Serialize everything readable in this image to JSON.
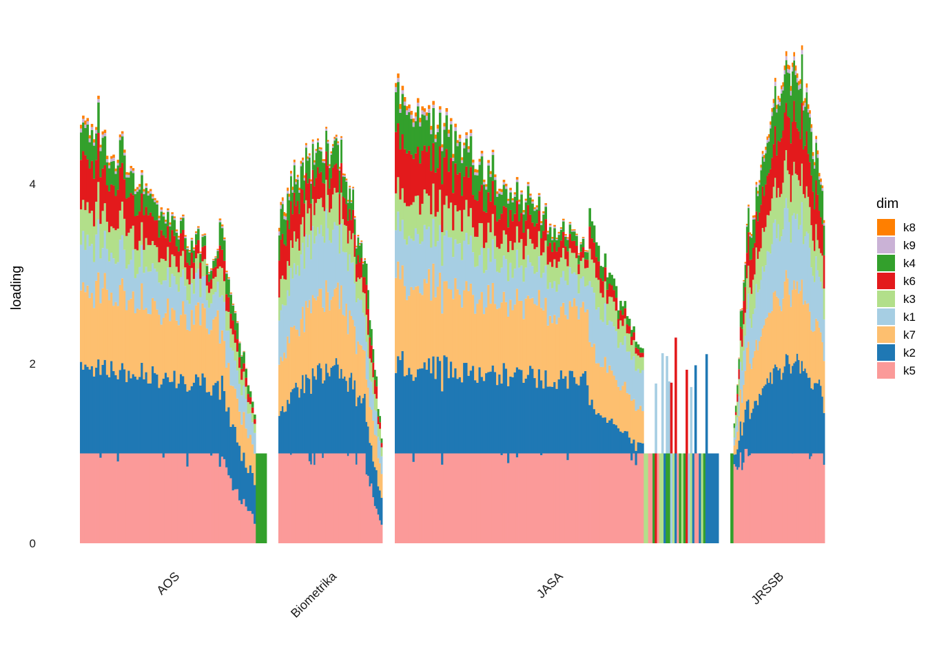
{
  "chart_data": {
    "type": "bar",
    "subtype": "stacked bar, one bar per document, faceted by journal",
    "ylabel": "loading",
    "xlabel": "",
    "ylim": [
      0,
      5.6
    ],
    "y_ticks": [
      "0",
      "2",
      "4"
    ],
    "legend": {
      "title": "dim",
      "placement": "right",
      "entries": [
        {
          "name": "k8",
          "color": "#FF7F00"
        },
        {
          "name": "k9",
          "color": "#CAB2D6"
        },
        {
          "name": "k4",
          "color": "#33A02C"
        },
        {
          "name": "k6",
          "color": "#E31A1C"
        },
        {
          "name": "k3",
          "color": "#B2DF8A"
        },
        {
          "name": "k1",
          "color": "#A6CEE3"
        },
        {
          "name": "k7",
          "color": "#FDBF6F"
        },
        {
          "name": "k2",
          "color": "#1F78B4"
        },
        {
          "name": "k5",
          "color": "#FB9A99"
        }
      ]
    },
    "stack_order_bottom_to_top": [
      "k5",
      "k2",
      "k7",
      "k1",
      "k3",
      "k6",
      "k4",
      "k9",
      "k8"
    ],
    "facets": [
      {
        "label": "AOS",
        "segments": [
          {
            "bars": 64,
            "pattern": "full",
            "k5": [
              1.0,
              1.0
            ],
            "k2": [
              1.0,
              0.75
            ],
            "k7": [
              0.9,
              0.7
            ],
            "k1": [
              0.55,
              0.3
            ],
            "k3": [
              0.4,
              0.15
            ],
            "k6": [
              0.55,
              0.1
            ],
            "k4": [
              0.35,
              0.08
            ],
            "k9": [
              0.04,
              0.01
            ],
            "k8": [
              0.04,
              0.01
            ]
          },
          {
            "bars": 17,
            "pattern": "decay",
            "k5": [
              1.0,
              0.25
            ],
            "k2": [
              0.85,
              0.4
            ],
            "k7": [
              0.6,
              0.35
            ],
            "k1": [
              0.45,
              0.25
            ],
            "k3": [
              0.3,
              0.1
            ],
            "k6": [
              0.25,
              0.05
            ],
            "k4": [
              0.3,
              0.05
            ],
            "k9": [
              0.02,
              0.0
            ],
            "k8": [
              0.02,
              0.0
            ]
          },
          {
            "bars": 5,
            "pattern": "single",
            "k4": [
              1.0,
              1.0
            ]
          }
        ]
      },
      {
        "label": "Biometrika",
        "segments": [
          {
            "bars": 52,
            "pattern": "hump",
            "k5": [
              1.0,
              1.0
            ],
            "k2": [
              0.45,
              0.95
            ],
            "k7": [
              0.55,
              0.85
            ],
            "k1": [
              0.55,
              0.7
            ],
            "k3": [
              0.3,
              0.35
            ],
            "k6": [
              0.45,
              0.3
            ],
            "k4": [
              0.3,
              0.25
            ],
            "k9": [
              0.04,
              0.02
            ],
            "k8": [
              0.04,
              0.02
            ]
          },
          {
            "bars": 10,
            "pattern": "decay",
            "k5": [
              0.9,
              0.2
            ],
            "k2": [
              0.6,
              0.3
            ],
            "k7": [
              0.5,
              0.3
            ],
            "k1": [
              0.4,
              0.2
            ],
            "k3": [
              0.3,
              0.1
            ],
            "k6": [
              0.3,
              0.05
            ],
            "k4": [
              0.25,
              0.05
            ],
            "k9": [
              0.0,
              0.0
            ],
            "k8": [
              0.0,
              0.0
            ]
          }
        ]
      },
      {
        "label": "JASA",
        "segments": [
          {
            "bars": 88,
            "pattern": "full",
            "k5": [
              1.0,
              1.0
            ],
            "k2": [
              1.0,
              0.8
            ],
            "k7": [
              0.95,
              0.75
            ],
            "k1": [
              0.6,
              0.3
            ],
            "k3": [
              0.4,
              0.2
            ],
            "k6": [
              0.6,
              0.1
            ],
            "k4": [
              0.45,
              0.08
            ],
            "k9": [
              0.05,
              0.01
            ],
            "k8": [
              0.05,
              0.01
            ]
          },
          {
            "bars": 25,
            "pattern": "decay",
            "k5": [
              1.0,
              1.0
            ],
            "k2": [
              0.6,
              0.1
            ],
            "k7": [
              0.7,
              0.4
            ],
            "k1": [
              0.6,
              0.4
            ],
            "k3": [
              0.35,
              0.15
            ],
            "k6": [
              0.25,
              0.05
            ],
            "k4": [
              0.2,
              0.05
            ],
            "k9": [
              0.0,
              0.0
            ],
            "k8": [
              0.0,
              0.0
            ]
          },
          {
            "bars": 10,
            "pattern": "mixed"
          },
          {
            "bars": 10,
            "pattern": "mixed"
          },
          {
            "bars": 9,
            "pattern": "mixed"
          },
          {
            "bars": 5,
            "pattern": "single",
            "k2": [
              1.0,
              1.0
            ]
          }
        ]
      },
      {
        "label": "JRSSB",
        "segments": [
          {
            "bars": 2,
            "pattern": "single",
            "k4": [
              1.0,
              1.0
            ]
          },
          {
            "bars": 10,
            "pattern": "rise",
            "k5": [
              0.9,
              1.0
            ],
            "k2": [
              0.1,
              0.6
            ],
            "k7": [
              0.1,
              0.6
            ],
            "k1": [
              0.1,
              0.5
            ],
            "k3": [
              0.1,
              0.35
            ],
            "k6": [
              0.0,
              0.35
            ],
            "k4": [
              0.05,
              0.3
            ],
            "k9": [
              0.0,
              0.02
            ],
            "k8": [
              0.0,
              0.02
            ]
          },
          {
            "bars": 48,
            "pattern": "hump",
            "k5": [
              1.0,
              1.0
            ],
            "k2": [
              0.45,
              1.0
            ],
            "k7": [
              0.55,
              0.85
            ],
            "k1": [
              0.5,
              0.8
            ],
            "k3": [
              0.35,
              0.5
            ],
            "k6": [
              0.35,
              0.6
            ],
            "k4": [
              0.25,
              0.5
            ],
            "k9": [
              0.02,
              0.05
            ],
            "k8": [
              0.02,
              0.05
            ]
          }
        ]
      }
    ]
  }
}
